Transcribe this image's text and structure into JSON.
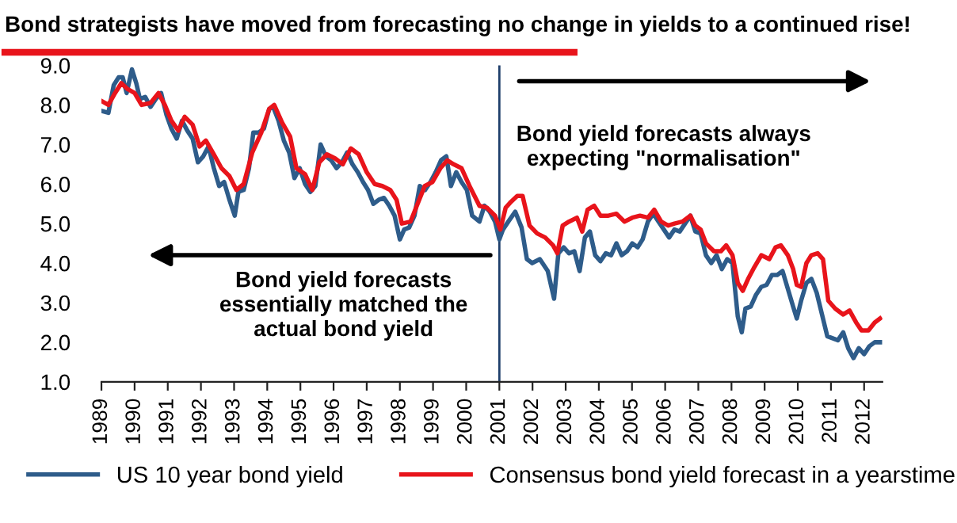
{
  "chart_data": {
    "type": "line",
    "title": "Bond strategists have moved from forecasting no change in yields to a continued rise!",
    "annotations": [
      "Bond yield forecasts\nessentially matched the\nactual bond yield",
      "Bond yield forecasts always\nexpecting \"normalisation\""
    ],
    "xlim": [
      1989,
      2012.55
    ],
    "xticks": [
      1989,
      1990,
      1991,
      1992,
      1993,
      1994,
      1995,
      1996,
      1997,
      1998,
      1999,
      2000,
      2001,
      2002,
      2003,
      2004,
      2005,
      2006,
      2007,
      2008,
      2009,
      2010,
      2011,
      2012
    ],
    "ylim": [
      1,
      9
    ],
    "yticks": [
      {
        "value": 1,
        "label": "1.0"
      },
      {
        "value": 2,
        "label": "2.0"
      },
      {
        "value": 3,
        "label": "3.0"
      },
      {
        "value": 4,
        "label": "4.0"
      },
      {
        "value": 5,
        "label": "5.0"
      },
      {
        "value": 6,
        "label": "6.0"
      },
      {
        "value": 7,
        "label": "7.0"
      },
      {
        "value": 8,
        "label": "8.0"
      },
      {
        "value": 9,
        "label": "9.0"
      }
    ],
    "ref_lines": [
      {
        "axis": "x",
        "value": 2001,
        "color": "#1f3f6b"
      }
    ],
    "grid": false,
    "legend": "bottom",
    "marker": "none",
    "line_style": "solid",
    "series": [
      {
        "name": "US 10 year bond yield",
        "color": "#2e5c8a",
        "x": [
          1989.0,
          1989.21,
          1989.37,
          1989.52,
          1989.64,
          1989.76,
          1989.92,
          1990.05,
          1990.16,
          1990.32,
          1990.48,
          1990.64,
          1990.8,
          1990.96,
          1991.11,
          1991.27,
          1991.43,
          1991.59,
          1991.75,
          1991.91,
          1992.07,
          1992.23,
          1992.39,
          1992.55,
          1992.7,
          1992.86,
          1993.02,
          1993.13,
          1993.29,
          1993.45,
          1993.58,
          1993.74,
          1993.9,
          1994.06,
          1994.18,
          1994.34,
          1994.5,
          1994.66,
          1994.82,
          1994.98,
          1995.14,
          1995.3,
          1995.45,
          1995.61,
          1995.77,
          1995.93,
          1996.09,
          1996.25,
          1996.41,
          1996.57,
          1996.73,
          1996.89,
          1997.04,
          1997.2,
          1997.36,
          1997.52,
          1997.68,
          1997.84,
          1998.0,
          1998.13,
          1998.28,
          1998.44,
          1998.6,
          1998.76,
          1998.92,
          1999.08,
          1999.24,
          1999.4,
          1999.54,
          1999.7,
          1999.86,
          2000.02,
          2000.18,
          2000.4,
          2000.55,
          2000.71,
          2000.87,
          2001.0,
          2001.11,
          2001.27,
          2001.48,
          2001.67,
          2001.83,
          2001.99,
          2002.22,
          2002.46,
          2002.65,
          2002.78,
          2002.94,
          2003.1,
          2003.26,
          2003.42,
          2003.58,
          2003.73,
          2003.89,
          2004.05,
          2004.21,
          2004.37,
          2004.53,
          2004.69,
          2004.85,
          2005.01,
          2005.17,
          2005.32,
          2005.48,
          2005.64,
          2005.8,
          2005.96,
          2006.12,
          2006.28,
          2006.44,
          2006.6,
          2006.76,
          2006.91,
          2007.07,
          2007.23,
          2007.39,
          2007.55,
          2007.71,
          2007.87,
          2008.03,
          2008.19,
          2008.31,
          2008.42,
          2008.58,
          2008.74,
          2008.9,
          2009.06,
          2009.22,
          2009.38,
          2009.54,
          2009.7,
          2009.86,
          2009.97,
          2010.1,
          2010.26,
          2010.41,
          2010.57,
          2010.73,
          2010.89,
          2011.05,
          2011.21,
          2011.37,
          2011.52,
          2011.68,
          2011.84,
          2012.0,
          2012.16,
          2012.32,
          2012.48
        ],
        "values": [
          7.85,
          7.8,
          8.5,
          8.7,
          8.7,
          8.3,
          8.9,
          8.55,
          8.15,
          8.2,
          7.95,
          8.15,
          8.3,
          7.75,
          7.4,
          7.15,
          7.6,
          7.35,
          7.15,
          6.55,
          6.7,
          6.95,
          6.4,
          5.95,
          6.05,
          5.6,
          5.2,
          5.8,
          5.85,
          6.4,
          7.3,
          7.3,
          7.4,
          7.9,
          7.95,
          7.6,
          7.1,
          6.8,
          6.15,
          6.4,
          6.0,
          5.8,
          5.95,
          7.0,
          6.7,
          6.6,
          6.4,
          6.55,
          6.8,
          6.5,
          6.3,
          6.05,
          5.85,
          5.5,
          5.6,
          5.65,
          5.45,
          5.2,
          4.6,
          4.85,
          4.9,
          5.2,
          5.95,
          5.85,
          6.05,
          6.3,
          6.6,
          6.7,
          5.95,
          6.3,
          6.05,
          5.85,
          5.2,
          5.05,
          5.45,
          5.3,
          5.05,
          4.6,
          4.85,
          5.05,
          5.3,
          4.9,
          4.1,
          4.0,
          4.1,
          3.8,
          3.1,
          4.25,
          4.4,
          4.25,
          4.3,
          3.8,
          4.65,
          4.8,
          4.2,
          4.05,
          4.25,
          4.2,
          4.5,
          4.2,
          4.3,
          4.5,
          4.4,
          4.6,
          5.05,
          5.25,
          5.05,
          4.85,
          4.65,
          4.85,
          4.8,
          5.0,
          5.2,
          4.8,
          4.75,
          4.2,
          4.0,
          4.2,
          3.85,
          4.1,
          4.0,
          2.65,
          2.25,
          2.85,
          2.9,
          3.2,
          3.4,
          3.45,
          3.7,
          3.7,
          3.8,
          3.35,
          2.9,
          2.6,
          3.05,
          3.5,
          3.6,
          3.25,
          2.7,
          2.15,
          2.1,
          2.05,
          2.25,
          1.85,
          1.6,
          1.85,
          1.7,
          1.9,
          2.0,
          2.0
        ]
      },
      {
        "name": "Consensus bond yield forecast in a yearstime",
        "color": "#e8141b",
        "x": [
          1989.0,
          1989.21,
          1989.41,
          1989.6,
          1989.79,
          1990.0,
          1990.21,
          1990.48,
          1990.72,
          1990.91,
          1991.11,
          1991.32,
          1991.51,
          1991.75,
          1991.96,
          1992.15,
          1992.39,
          1992.62,
          1992.86,
          1993.07,
          1993.29,
          1993.55,
          1993.82,
          1994.06,
          1994.21,
          1994.45,
          1994.69,
          1994.88,
          1995.14,
          1995.36,
          1995.57,
          1995.8,
          1996.04,
          1996.28,
          1996.52,
          1996.76,
          1997.0,
          1997.24,
          1997.47,
          1997.71,
          1997.9,
          1998.06,
          1998.32,
          1998.51,
          1998.75,
          1998.98,
          1999.22,
          1999.43,
          1999.62,
          1999.86,
          2000.1,
          2000.4,
          2000.63,
          2000.87,
          2001.03,
          2001.19,
          2001.35,
          2001.54,
          2001.7,
          2001.91,
          2002.14,
          2002.38,
          2002.62,
          2002.75,
          2002.91,
          2003.1,
          2003.34,
          2003.5,
          2003.66,
          2003.86,
          2004.05,
          2004.29,
          2004.53,
          2004.77,
          2005.01,
          2005.24,
          2005.48,
          2005.67,
          2005.88,
          2006.09,
          2006.28,
          2006.52,
          2006.76,
          2006.91,
          2007.07,
          2007.23,
          2007.47,
          2007.68,
          2007.84,
          2008.03,
          2008.19,
          2008.34,
          2008.5,
          2008.69,
          2008.9,
          2009.14,
          2009.33,
          2009.49,
          2009.7,
          2009.86,
          2009.97,
          2010.1,
          2010.26,
          2010.41,
          2010.6,
          2010.76,
          2010.92,
          2011.13,
          2011.37,
          2011.56,
          2011.76,
          2011.92,
          2012.13,
          2012.32,
          2012.48
        ],
        "values": [
          8.1,
          8.0,
          8.3,
          8.55,
          8.4,
          8.3,
          8.0,
          8.05,
          8.3,
          8.0,
          7.6,
          7.35,
          7.7,
          7.5,
          6.95,
          7.1,
          6.75,
          6.4,
          6.2,
          5.85,
          6.0,
          6.8,
          7.3,
          7.9,
          8.0,
          7.55,
          7.2,
          6.4,
          6.25,
          5.85,
          6.55,
          6.75,
          6.65,
          6.5,
          6.9,
          6.75,
          6.3,
          6.0,
          5.95,
          5.85,
          5.6,
          5.0,
          5.05,
          5.45,
          5.95,
          6.05,
          6.4,
          6.6,
          6.5,
          6.4,
          5.95,
          5.45,
          5.4,
          5.2,
          4.85,
          5.4,
          5.55,
          5.7,
          5.7,
          4.95,
          4.75,
          4.65,
          4.45,
          4.25,
          4.95,
          5.05,
          5.15,
          4.8,
          5.35,
          5.45,
          5.2,
          5.2,
          5.25,
          5.05,
          5.15,
          5.2,
          5.15,
          5.35,
          5.05,
          4.95,
          5.0,
          5.05,
          5.2,
          4.95,
          4.85,
          4.5,
          4.3,
          4.3,
          4.45,
          4.2,
          3.5,
          3.3,
          3.6,
          3.9,
          4.2,
          4.1,
          4.4,
          4.45,
          4.2,
          3.85,
          3.45,
          3.4,
          4.0,
          4.2,
          4.25,
          4.1,
          3.05,
          2.85,
          2.7,
          2.8,
          2.5,
          2.3,
          2.3,
          2.5,
          2.6
        ]
      }
    ]
  }
}
